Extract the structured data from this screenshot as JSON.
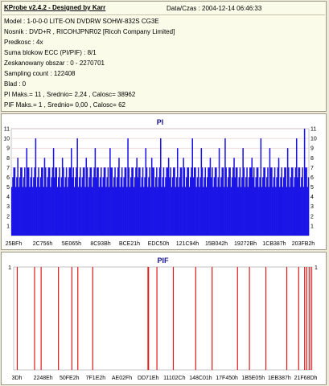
{
  "header": {
    "title": "KProbe v2.4.2 - Designed by Karr",
    "datetime": "Data/Czas : 2004-12-14 06:46:33"
  },
  "info": {
    "model": "Model : 1-0-0-0 LITE-ON DVDRW SOHW-832S  CG3E",
    "nosnik": "Nosnik : DVD+R , RICOHJPNR02 [Ricoh Company Limited]",
    "predkosc": "Predkosc : 4x",
    "suma": "Suma blokow ECC (PI/PIF) : 8/1",
    "zeskanowany": "Zeskanowany obszar : 0 - 2270701",
    "sampling": "Sampling count : 122408",
    "blad": "Blad : 0",
    "pi_stats": "PI Maks.= 11 , Srednio= 2,24 , Calosc= 38962",
    "pif_stats": "PIF Maks.= 1 , Srednio= 0,00 , Calosc= 62"
  },
  "colors": {
    "pi": "#1a14e6",
    "pif": "#e01818",
    "grid": "#e2b8b8"
  },
  "chart_data": [
    {
      "type": "bar",
      "title": "PI",
      "ylim": [
        0,
        11
      ],
      "y_ticks": [
        1,
        2,
        3,
        4,
        5,
        6,
        7,
        8,
        9,
        10,
        11
      ],
      "x_ticks": [
        "25BFh",
        "2C756h",
        "5E065h",
        "8C93Bh",
        "BCE21h",
        "EDC50h",
        "121C94h",
        "15B042h",
        "19272Bh",
        "1CB387h",
        "203FB2h"
      ],
      "baseline": 5,
      "spikes": [
        [
          0.02,
          8
        ],
        [
          0.05,
          9
        ],
        [
          0.08,
          10
        ],
        [
          0.11,
          8
        ],
        [
          0.14,
          9
        ],
        [
          0.17,
          8
        ],
        [
          0.2,
          9
        ],
        [
          0.22,
          10
        ],
        [
          0.25,
          8
        ],
        [
          0.28,
          9
        ],
        [
          0.31,
          7
        ],
        [
          0.33,
          9
        ],
        [
          0.36,
          8
        ],
        [
          0.39,
          10
        ],
        [
          0.42,
          8
        ],
        [
          0.45,
          9
        ],
        [
          0.47,
          8
        ],
        [
          0.5,
          10
        ],
        [
          0.53,
          8
        ],
        [
          0.56,
          9
        ],
        [
          0.58,
          8
        ],
        [
          0.61,
          10
        ],
        [
          0.64,
          9
        ],
        [
          0.67,
          8
        ],
        [
          0.7,
          9
        ],
        [
          0.72,
          10
        ],
        [
          0.75,
          8
        ],
        [
          0.78,
          9
        ],
        [
          0.81,
          8
        ],
        [
          0.84,
          10
        ],
        [
          0.87,
          9
        ],
        [
          0.9,
          8
        ],
        [
          0.93,
          9
        ],
        [
          0.96,
          10
        ],
        [
          0.985,
          11
        ]
      ]
    },
    {
      "type": "bar",
      "title": "PIF",
      "ylim": [
        0,
        1
      ],
      "y_ticks": [
        1
      ],
      "x_ticks": [
        "3Dh",
        "2248Eh",
        "50FE2h",
        "7F1E2h",
        "AE02Fh",
        "DD71Eh",
        "11102Ch",
        "148C01h",
        "17F450h",
        "1B5E05h",
        "1EB387h",
        "21F68Dh"
      ],
      "events": [
        0.012,
        0.07,
        0.092,
        0.15,
        0.195,
        0.215,
        0.265,
        0.45,
        0.452,
        0.48,
        0.535,
        0.61,
        0.665,
        0.75,
        0.79,
        0.845,
        0.915,
        0.955,
        0.975,
        0.982,
        0.99,
        0.997
      ]
    }
  ]
}
